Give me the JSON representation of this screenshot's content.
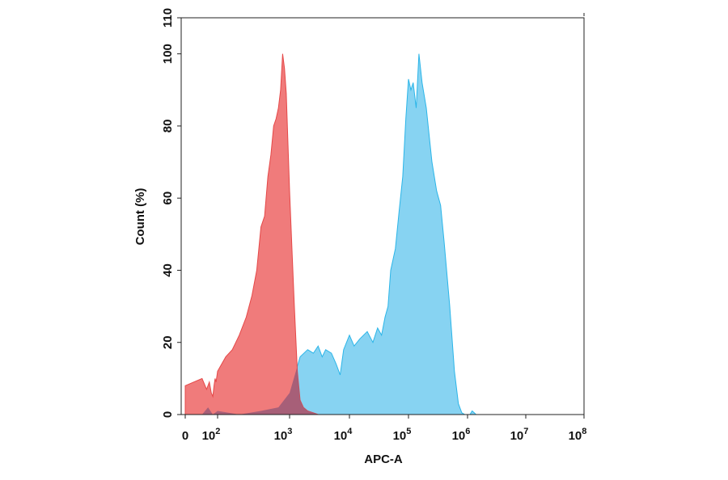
{
  "chart_data": {
    "type": "area",
    "title": "",
    "xlabel": "APC-A",
    "ylabel": "Count (%)",
    "x_scale": "biexponential",
    "xlim": [
      0,
      100000000
    ],
    "ylim": [
      0,
      110
    ],
    "y_ticks": [
      0,
      20,
      40,
      60,
      80,
      100,
      110
    ],
    "x_ticks": [
      {
        "value": 0,
        "label": "0"
      },
      {
        "value": 100,
        "base": "10",
        "exp": "2"
      },
      {
        "value": 1000,
        "base": "10",
        "exp": "3"
      },
      {
        "value": 10000,
        "base": "10",
        "exp": "4"
      },
      {
        "value": 100000,
        "base": "10",
        "exp": "5"
      },
      {
        "value": 1000000,
        "base": "10",
        "exp": "6"
      },
      {
        "value": 10000000,
        "base": "10",
        "exp": "7"
      },
      {
        "value": 100000000,
        "base": "10",
        "exp": "8"
      }
    ],
    "grid": false,
    "legend": "none",
    "series": [
      {
        "color": "#2bb5e8",
        "fill": "#87d3f2",
        "x": [
          0,
          10,
          25,
          50,
          100,
          200,
          400,
          700,
          1000,
          1500,
          2000,
          2500,
          3000,
          3500,
          4000,
          5000,
          6000,
          7000,
          8000,
          10000,
          12000,
          15000,
          20000,
          25000,
          30000,
          35000,
          40000,
          45000,
          50000,
          60000,
          70000,
          80000,
          90000,
          100000,
          110000,
          120000,
          135000,
          150000,
          170000,
          200000,
          250000,
          300000,
          350000,
          400000,
          500000,
          600000,
          700000,
          800000,
          900000,
          1000000,
          1100000,
          1200000,
          1300000,
          1400000,
          1600000,
          10000000,
          100000000
        ],
        "y": [
          0,
          0,
          2,
          0,
          1,
          0,
          1,
          2,
          6,
          16,
          18,
          17,
          19,
          16,
          18,
          17,
          14,
          11,
          18,
          22,
          19,
          21,
          23,
          20,
          24,
          22,
          27,
          30,
          40,
          46,
          57,
          66,
          82,
          93,
          90,
          92,
          85,
          100,
          92,
          85,
          70,
          62,
          58,
          48,
          30,
          12,
          3,
          0.5,
          0,
          0,
          0,
          1,
          0.5,
          0,
          0,
          0,
          0
        ]
      },
      {
        "color": "#e54848",
        "fill": "#f07b7b",
        "x": [
          0,
          10,
          20,
          30,
          40,
          50,
          60,
          70,
          80,
          100,
          130,
          160,
          200,
          250,
          300,
          350,
          400,
          450,
          500,
          550,
          600,
          650,
          700,
          750,
          800,
          850,
          900,
          950,
          1000,
          1100,
          1200,
          1350,
          1500,
          1700,
          2000,
          2500,
          3000,
          4000,
          5000,
          6000
        ],
        "y": [
          8,
          10,
          7,
          9,
          6,
          5,
          8,
          10,
          9,
          12,
          16,
          18,
          22,
          27,
          33,
          40,
          52,
          55,
          66,
          72,
          80,
          82,
          85,
          90,
          100,
          96,
          89,
          75,
          62,
          45,
          30,
          12,
          4,
          2,
          1,
          0.5,
          0,
          0,
          0,
          0
        ]
      }
    ],
    "overlap_fill": "#9a5a78"
  }
}
